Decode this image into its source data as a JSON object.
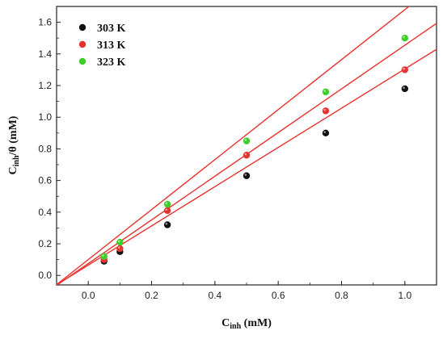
{
  "chart_data": {
    "type": "scatter",
    "xlabel": {
      "main": "C",
      "sub": "inh",
      "rest": " (mM)"
    },
    "ylabel": {
      "main": "C",
      "sub": "inh",
      "rest": "/θ (mM)"
    },
    "xlim": [
      -0.1,
      1.1
    ],
    "ylim": [
      -0.06,
      1.7
    ],
    "xticks": [
      0.0,
      0.2,
      0.4,
      0.6,
      0.8,
      1.0
    ],
    "xtick_labels": [
      "0.0",
      "0.2",
      "0.4",
      "0.6",
      "0.8",
      "1.0"
    ],
    "yticks": [
      0.0,
      0.2,
      0.4,
      0.6,
      0.8,
      1.0,
      1.2,
      1.4,
      1.6
    ],
    "ytick_labels": [
      "0.0",
      "0.2",
      "0.4",
      "0.6",
      "0.8",
      "1.0",
      "1.2",
      "1.4",
      "1.6"
    ],
    "legend_position": "top-left",
    "fit_line_color": "#e8322e",
    "series": [
      {
        "name": "303 K",
        "color": "#111111",
        "x": [
          0.05,
          0.1,
          0.25,
          0.5,
          0.75,
          1.0
        ],
        "y": [
          0.09,
          0.15,
          0.32,
          0.63,
          0.9,
          1.18
        ],
        "fit": {
          "slope": 1.24,
          "intercept": 0.065
        }
      },
      {
        "name": "313 K",
        "color": "#e8322e",
        "x": [
          0.05,
          0.1,
          0.25,
          0.5,
          0.75,
          1.0
        ],
        "y": [
          0.1,
          0.17,
          0.41,
          0.76,
          1.04,
          1.3
        ],
        "fit": {
          "slope": 1.38,
          "intercept": 0.075
        }
      },
      {
        "name": "323 K",
        "color": "#3ccf2a",
        "x": [
          0.05,
          0.1,
          0.25,
          0.5,
          0.75,
          1.0
        ],
        "y": [
          0.12,
          0.21,
          0.45,
          0.85,
          1.16,
          1.5
        ],
        "fit": {
          "slope": 1.58,
          "intercept": 0.1
        }
      }
    ]
  }
}
